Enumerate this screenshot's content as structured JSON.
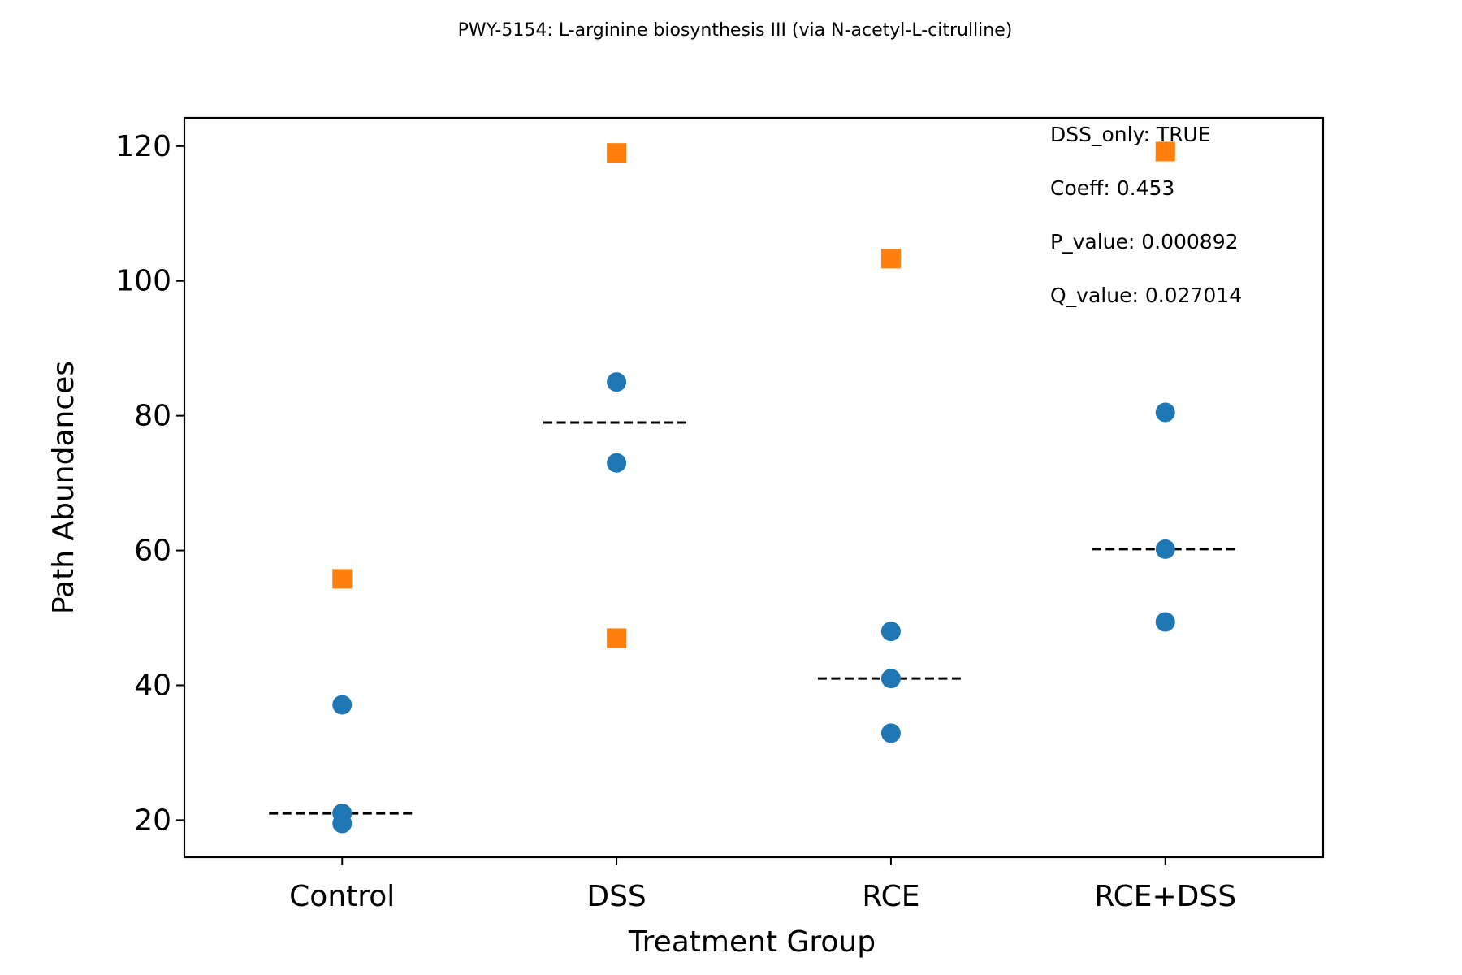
{
  "chart_data": {
    "type": "scatter",
    "title": "PWY-5154: L-arginine biosynthesis III (via N-acetyl-L-citrulline)",
    "xlabel": "Treatment Group",
    "ylabel": "Path Abundances",
    "categories": [
      "Control",
      "DSS",
      "RCE",
      "RCE+DSS"
    ],
    "ylim": [
      14.5,
      124.2
    ],
    "yticks": [
      20,
      40,
      60,
      80,
      100,
      120
    ],
    "grid": false,
    "series": [
      {
        "marker": "circle",
        "color": "#1f77b4",
        "points": [
          {
            "category": "Control",
            "y": 37.1
          },
          {
            "category": "Control",
            "y": 21.0
          },
          {
            "category": "Control",
            "y": 19.5
          },
          {
            "category": "DSS",
            "y": 85.0
          },
          {
            "category": "DSS",
            "y": 73.0
          },
          {
            "category": "RCE",
            "y": 48.0
          },
          {
            "category": "RCE",
            "y": 41.0
          },
          {
            "category": "RCE",
            "y": 32.9
          },
          {
            "category": "RCE+DSS",
            "y": 80.5
          },
          {
            "category": "RCE+DSS",
            "y": 60.2
          },
          {
            "category": "RCE+DSS",
            "y": 49.4
          }
        ]
      },
      {
        "marker": "square",
        "color": "#ff7f0e",
        "points": [
          {
            "category": "Control",
            "y": 55.8
          },
          {
            "category": "DSS",
            "y": 119.0
          },
          {
            "category": "DSS",
            "y": 47.0
          },
          {
            "category": "RCE",
            "y": 103.3
          },
          {
            "category": "RCE+DSS",
            "y": 119.2
          }
        ]
      }
    ],
    "median_lines": [
      {
        "category": "Control",
        "y": 21.0
      },
      {
        "category": "DSS",
        "y": 79.0
      },
      {
        "category": "RCE",
        "y": 41.0
      },
      {
        "category": "RCE+DSS",
        "y": 60.2
      }
    ],
    "annotations": [
      "DSS_only: TRUE",
      "Coeff: 0.453",
      "P_value: 0.000892",
      "Q_value: 0.027014"
    ]
  }
}
